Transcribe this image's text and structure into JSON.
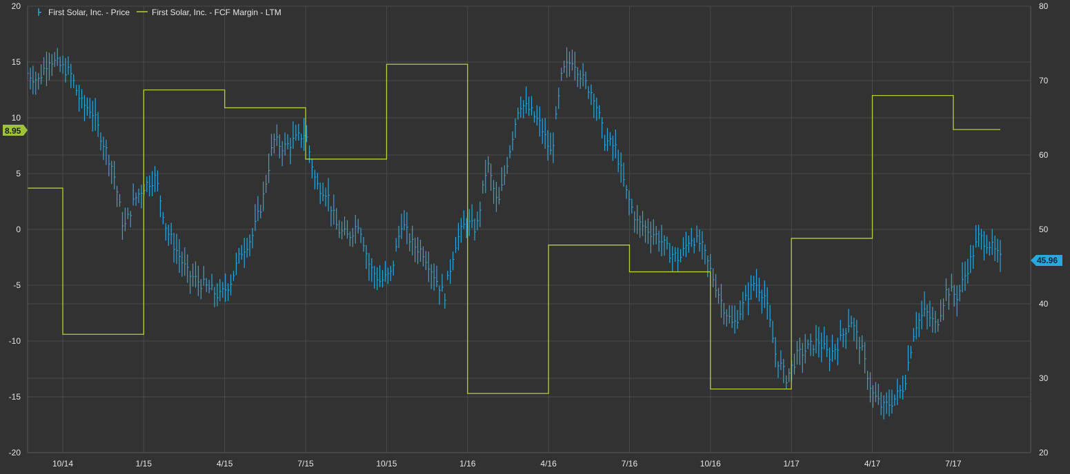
{
  "chart_data": {
    "type": "line",
    "title": "",
    "legend": {
      "placement": "top-left",
      "entries": [
        {
          "label": "First Solar, Inc. - Price",
          "color": "#29a8e0",
          "marker": "ohlc-tick"
        },
        {
          "label": "First Solar, Inc. - FCF Margin - LTM",
          "color": "#b5d334",
          "marker": "line"
        }
      ]
    },
    "x_axis": {
      "ticks": [
        "10/14",
        "1/15",
        "4/15",
        "7/15",
        "10/15",
        "1/16",
        "4/16",
        "7/16",
        "10/16",
        "1/17",
        "4/17",
        "7/17"
      ]
    },
    "left_axis": {
      "ylim": [
        -20,
        20
      ],
      "ticks": [
        "20",
        "15",
        "10",
        "5",
        "0",
        "-5",
        "-10",
        "-15",
        "-20"
      ]
    },
    "right_axis": {
      "ylim": [
        20,
        80
      ],
      "ticks": [
        "80",
        "70",
        "60",
        "50",
        "40",
        "30",
        "20"
      ]
    },
    "grid": true,
    "badges": {
      "left": "8.95",
      "right": "45.96"
    },
    "series": [
      {
        "name": "First Solar, Inc. - FCF Margin - LTM",
        "axis": "left",
        "kind": "step",
        "steps": [
          {
            "from": "7/14",
            "to": "10/14",
            "value": 3.7
          },
          {
            "from": "10/14",
            "to": "1/15",
            "value": -9.4
          },
          {
            "from": "1/15",
            "to": "4/15",
            "value": 12.5
          },
          {
            "from": "4/15",
            "to": "7/15",
            "value": 10.9
          },
          {
            "from": "7/15",
            "to": "10/15",
            "value": 6.3
          },
          {
            "from": "10/15",
            "to": "1/16",
            "value": 14.8
          },
          {
            "from": "1/16",
            "to": "4/16",
            "value": -14.7
          },
          {
            "from": "4/16",
            "to": "7/16",
            "value": -1.4
          },
          {
            "from": "7/16",
            "to": "10/16",
            "value": -3.8
          },
          {
            "from": "10/16",
            "to": "1/17",
            "value": -14.3
          },
          {
            "from": "1/17",
            "to": "4/17",
            "value": -0.8
          },
          {
            "from": "4/17",
            "to": "7/17",
            "value": 12.0
          },
          {
            "from": "7/17",
            "to": "9/17",
            "value": 8.95
          }
        ]
      },
      {
        "name": "First Solar, Inc. - Price",
        "axis": "right",
        "kind": "ohlc",
        "points": [
          [
            "7/14",
            71
          ],
          [
            "7/14",
            70
          ],
          [
            "8/14",
            73
          ],
          [
            "8/14",
            72
          ],
          [
            "9/14",
            71
          ],
          [
            "9/14",
            67
          ],
          [
            "10/14",
            66
          ],
          [
            "10/14",
            62
          ],
          [
            "10/14",
            58
          ],
          [
            "11/14",
            50
          ],
          [
            "11/14",
            54
          ],
          [
            "11/14",
            56
          ],
          [
            "12/14",
            57
          ],
          [
            "12/14",
            50
          ],
          [
            "12/14",
            47
          ],
          [
            "12/14",
            44
          ],
          [
            "1/15",
            43
          ],
          [
            "1/15",
            42
          ],
          [
            "2/15",
            41
          ],
          [
            "2/15",
            43
          ],
          [
            "3/15",
            47
          ],
          [
            "3/15",
            49
          ],
          [
            "3/15",
            54
          ],
          [
            "4/15",
            62
          ],
          [
            "4/15",
            61
          ],
          [
            "5/15",
            62
          ],
          [
            "5/15",
            63
          ],
          [
            "6/15",
            56
          ],
          [
            "6/15",
            55
          ],
          [
            "6/15",
            50
          ],
          [
            "7/15",
            49
          ],
          [
            "7/15",
            51
          ],
          [
            "8/15",
            45
          ],
          [
            "8/15",
            43
          ],
          [
            "9/15",
            44
          ],
          [
            "9/15",
            51
          ],
          [
            "9/15",
            48
          ],
          [
            "10/15",
            47
          ],
          [
            "10/15",
            44
          ],
          [
            "10/15",
            41
          ],
          [
            "11/15",
            48
          ],
          [
            "11/15",
            51
          ],
          [
            "11/15",
            50
          ],
          [
            "12/15",
            59
          ],
          [
            "12/15",
            53
          ],
          [
            "12/15",
            60
          ],
          [
            "1/16",
            67
          ],
          [
            "1/16",
            66
          ],
          [
            "2/16",
            64
          ],
          [
            "2/16",
            60
          ],
          [
            "3/16",
            71
          ],
          [
            "3/16",
            73
          ],
          [
            "3/16",
            70
          ],
          [
            "4/16",
            68
          ],
          [
            "4/16",
            62
          ],
          [
            "4/16",
            61
          ],
          [
            "5/16",
            55
          ],
          [
            "5/16",
            51
          ],
          [
            "6/16",
            50
          ],
          [
            "6/16",
            49
          ],
          [
            "7/16",
            47
          ],
          [
            "7/16",
            46
          ],
          [
            "8/16",
            49
          ],
          [
            "8/16",
            48
          ],
          [
            "8/16",
            44
          ],
          [
            "9/16",
            40
          ],
          [
            "9/16",
            37
          ],
          [
            "10/16",
            40
          ],
          [
            "10/16",
            43
          ],
          [
            "11/16",
            41
          ],
          [
            "11/16",
            33
          ],
          [
            "12/16",
            30
          ],
          [
            "12/16",
            33
          ],
          [
            "1/17",
            34
          ],
          [
            "1/17",
            35
          ],
          [
            "2/17",
            33
          ],
          [
            "2/17",
            35
          ],
          [
            "3/17",
            38
          ],
          [
            "3/17",
            34
          ],
          [
            "4/17",
            28
          ],
          [
            "4/17",
            26
          ],
          [
            "5/17",
            27
          ],
          [
            "5/17",
            29
          ],
          [
            "6/17",
            37
          ],
          [
            "6/17",
            39
          ],
          [
            "6/17",
            37
          ],
          [
            "7/17",
            42
          ],
          [
            "7/17",
            41
          ],
          [
            "8/17",
            45
          ],
          [
            "8/17",
            49
          ],
          [
            "9/17",
            48
          ],
          [
            "9/17",
            45.96
          ]
        ]
      }
    ]
  }
}
